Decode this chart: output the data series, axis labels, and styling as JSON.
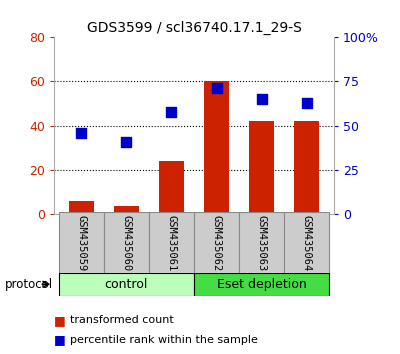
{
  "title": "GDS3599 / scl36740.17.1_29-S",
  "samples": [
    "GSM435059",
    "GSM435060",
    "GSM435061",
    "GSM435062",
    "GSM435063",
    "GSM435064"
  ],
  "bar_values": [
    6,
    3.5,
    24,
    60,
    42,
    42
  ],
  "percentile_values": [
    46,
    41,
    58,
    71,
    65,
    63
  ],
  "bar_color": "#cc2200",
  "dot_color": "#0000cc",
  "ylim_left": [
    0,
    80
  ],
  "ylim_right": [
    0,
    100
  ],
  "yticks_left": [
    0,
    20,
    40,
    60,
    80
  ],
  "ytick_labels_left": [
    "0",
    "20",
    "40",
    "60",
    "80"
  ],
  "yticks_right": [
    0,
    25,
    50,
    75,
    100
  ],
  "ytick_labels_right": [
    "0",
    "25",
    "50",
    "75",
    "100%"
  ],
  "grid_yticks": [
    20,
    40,
    60
  ],
  "groups": [
    {
      "label": "control",
      "samples": [
        0,
        1,
        2
      ],
      "color": "#bbffbb",
      "edge_color": "#000000"
    },
    {
      "label": "Eset depletion",
      "samples": [
        3,
        4,
        5
      ],
      "color": "#44dd44",
      "edge_color": "#000000"
    }
  ],
  "legend_bar_label": "transformed count",
  "legend_dot_label": "percentile rank within the sample",
  "protocol_label": "protocol",
  "tick_color_left": "#cc2200",
  "tick_color_right": "#0000cc",
  "bar_width": 0.55,
  "dot_size": 55,
  "sample_box_color": "#cccccc",
  "sample_box_edge": "#888888"
}
